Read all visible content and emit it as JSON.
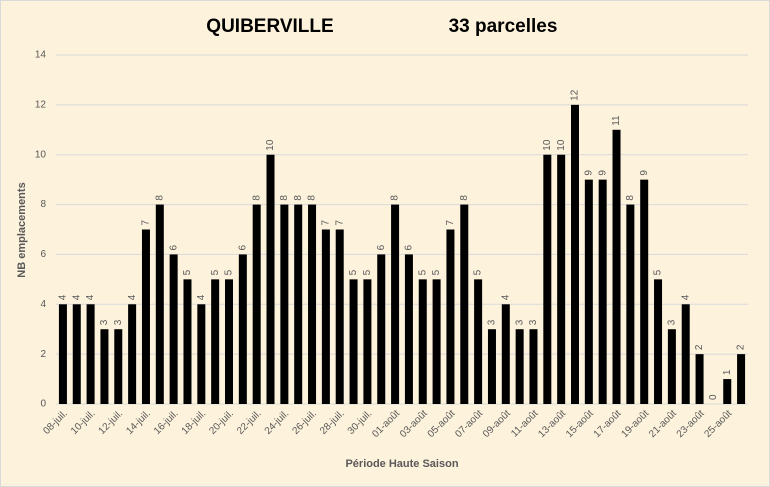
{
  "chart_data": {
    "type": "bar",
    "title": "QUIBERVILLE",
    "subtitle": "33 parcelles",
    "x_label": "Période Haute Saison",
    "y_label": "NB emplacements",
    "categories": [
      "08-juil.",
      null,
      "10-juil.",
      null,
      "12-juil.",
      null,
      "14-juil.",
      null,
      "16-juil.",
      null,
      "18-juil.",
      null,
      "20-juil.",
      null,
      "22-juil.",
      null,
      "24-juil.",
      null,
      "26-juil.",
      null,
      "28-juil.",
      null,
      "30-juil.",
      null,
      "01-août",
      null,
      "03-août",
      null,
      "05-août",
      null,
      "07-août",
      null,
      "09-août",
      null,
      "11-août",
      null,
      "13-août",
      null,
      "15-août",
      null,
      "17-août",
      null,
      "19-août",
      null,
      "21-août",
      null,
      "23-août",
      null,
      "25-août",
      null
    ],
    "values": [
      4,
      4,
      4,
      3,
      3,
      4,
      7,
      8,
      6,
      5,
      4,
      5,
      5,
      6,
      8,
      10,
      8,
      8,
      8,
      7,
      7,
      5,
      5,
      6,
      8,
      6,
      5,
      5,
      7,
      8,
      5,
      3,
      4,
      3,
      3,
      10,
      10,
      12,
      9,
      9,
      11,
      8,
      9,
      5,
      3,
      4,
      2,
      0,
      1,
      2
    ],
    "color": "#000000",
    "ylim": [
      0,
      14
    ],
    "yticks": [
      0,
      2,
      4,
      6,
      8,
      10,
      12,
      14
    ],
    "grid": true
  }
}
